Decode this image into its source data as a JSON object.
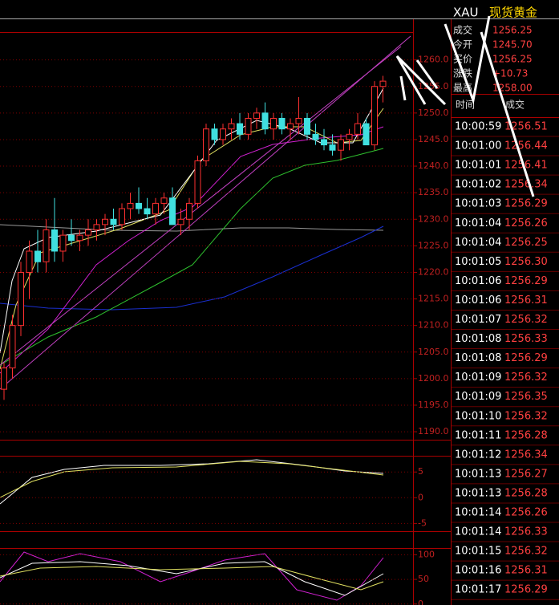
{
  "header": {
    "symbol": "XAU",
    "name": "现货黄金"
  },
  "quote": {
    "rows": [
      {
        "label": "成交",
        "value": "1256.25"
      },
      {
        "label": "今开",
        "value": "1245.70"
      },
      {
        "label": "买价",
        "value": "1256.25"
      },
      {
        "label": "涨跌",
        "value": "+10.73"
      },
      {
        "label": "最高",
        "value": "1258.00"
      }
    ]
  },
  "ticks_table": {
    "columns": [
      "时间",
      "成交"
    ],
    "rows": [
      [
        "10:00:59",
        "1256.51"
      ],
      [
        "10:01:00",
        "1256.44"
      ],
      [
        "10:01:01",
        "1256.41"
      ],
      [
        "10:01:02",
        "1256.34"
      ],
      [
        "10:01:03",
        "1256.29"
      ],
      [
        "10:01:04",
        "1256.26"
      ],
      [
        "10:01:04",
        "1256.25"
      ],
      [
        "10:01:05",
        "1256.30"
      ],
      [
        "10:01:06",
        "1256.29"
      ],
      [
        "10:01:06",
        "1256.31"
      ],
      [
        "10:01:07",
        "1256.32"
      ],
      [
        "10:01:08",
        "1256.33"
      ],
      [
        "10:01:08",
        "1256.29"
      ],
      [
        "10:01:09",
        "1256.32"
      ],
      [
        "10:01:09",
        "1256.35"
      ],
      [
        "10:01:10",
        "1256.32"
      ],
      [
        "10:01:11",
        "1256.28"
      ],
      [
        "10:01:12",
        "1256.34"
      ],
      [
        "10:01:13",
        "1256.27"
      ],
      [
        "10:01:13",
        "1256.28"
      ],
      [
        "10:01:14",
        "1256.26"
      ],
      [
        "10:01:14",
        "1256.33"
      ],
      [
        "10:01:15",
        "1256.32"
      ],
      [
        "10:01:16",
        "1256.31"
      ],
      [
        "10:01:17",
        "1256.29"
      ]
    ]
  },
  "price_chart": {
    "type": "candlestick",
    "ylim": [
      1188.5,
      1267.5
    ],
    "yticks": [
      {
        "value": 1190,
        "label": "1190.0"
      },
      {
        "value": 1195,
        "label": "1195.0"
      },
      {
        "value": 1200,
        "label": "1200.0"
      },
      {
        "value": 1205,
        "label": "1205.0"
      },
      {
        "value": 1210,
        "label": "1210.0"
      },
      {
        "value": 1215,
        "label": "1215.0"
      },
      {
        "value": 1220,
        "label": "1220.0"
      },
      {
        "value": 1225,
        "label": "1225.0"
      },
      {
        "value": 1230,
        "label": "1230.0"
      },
      {
        "value": 1235,
        "label": "1235.0"
      },
      {
        "value": 1240,
        "label": "1240.0"
      },
      {
        "value": 1245,
        "label": "1245.0"
      },
      {
        "value": 1250,
        "label": "1250.0"
      },
      {
        "value": 1255,
        "label": "1255.0"
      },
      {
        "value": 1260,
        "label": "1260.0"
      }
    ],
    "candles": [
      [
        1198,
        1203,
        1196,
        1202
      ],
      [
        1202,
        1212,
        1200,
        1210
      ],
      [
        1210,
        1222,
        1208,
        1220
      ],
      [
        1220,
        1226,
        1215,
        1224
      ],
      [
        1224,
        1228,
        1220,
        1222
      ],
      [
        1222,
        1230,
        1220,
        1228
      ],
      [
        1228,
        1234,
        1222,
        1224
      ],
      [
        1224,
        1228,
        1222,
        1227
      ],
      [
        1227,
        1230,
        1225,
        1226
      ],
      [
        1226,
        1228,
        1224,
        1227
      ],
      [
        1227,
        1230,
        1225,
        1228
      ],
      [
        1228,
        1230,
        1226,
        1229
      ],
      [
        1229,
        1231,
        1227,
        1230
      ],
      [
        1230,
        1232,
        1228,
        1229
      ],
      [
        1229,
        1233,
        1228,
        1232
      ],
      [
        1232,
        1235,
        1230,
        1233
      ],
      [
        1233,
        1236,
        1231,
        1232
      ],
      [
        1232,
        1234,
        1230,
        1231
      ],
      [
        1231,
        1234,
        1229,
        1233
      ],
      [
        1233,
        1235,
        1231,
        1234
      ],
      [
        1234,
        1236,
        1229,
        1229
      ],
      [
        1229,
        1232,
        1227,
        1230
      ],
      [
        1230,
        1234,
        1228,
        1233
      ],
      [
        1233,
        1242,
        1232,
        1241
      ],
      [
        1241,
        1248,
        1240,
        1247
      ],
      [
        1247,
        1248,
        1244,
        1245
      ],
      [
        1245,
        1248,
        1244,
        1247
      ],
      [
        1247,
        1249,
        1245,
        1248
      ],
      [
        1248,
        1250,
        1245,
        1246
      ],
      [
        1246,
        1250,
        1245,
        1249
      ],
      [
        1249,
        1251,
        1247,
        1250
      ],
      [
        1250,
        1252,
        1246,
        1247
      ],
      [
        1247,
        1250,
        1245,
        1249
      ],
      [
        1249,
        1250,
        1246,
        1247
      ],
      [
        1247,
        1249,
        1245,
        1248
      ],
      [
        1248,
        1253,
        1246,
        1249
      ],
      [
        1249,
        1250,
        1245,
        1246
      ],
      [
        1246,
        1248,
        1244,
        1245
      ],
      [
        1245,
        1247,
        1243,
        1244
      ],
      [
        1244,
        1246,
        1242,
        1243
      ],
      [
        1243,
        1246,
        1241,
        1245
      ],
      [
        1245,
        1247,
        1243,
        1246
      ],
      [
        1246,
        1250,
        1245,
        1248
      ],
      [
        1248,
        1249,
        1244,
        1244
      ],
      [
        1244,
        1256,
        1243,
        1255
      ],
      [
        1255,
        1257,
        1252,
        1256
      ]
    ]
  },
  "macd_panel": {
    "ylim": [
      -6.5,
      8
    ],
    "yticks": [
      5,
      0,
      -5
    ]
  },
  "kdj_panel": {
    "ylim": [
      -2,
      112
    ],
    "yticks": [
      100,
      50,
      0
    ]
  }
}
